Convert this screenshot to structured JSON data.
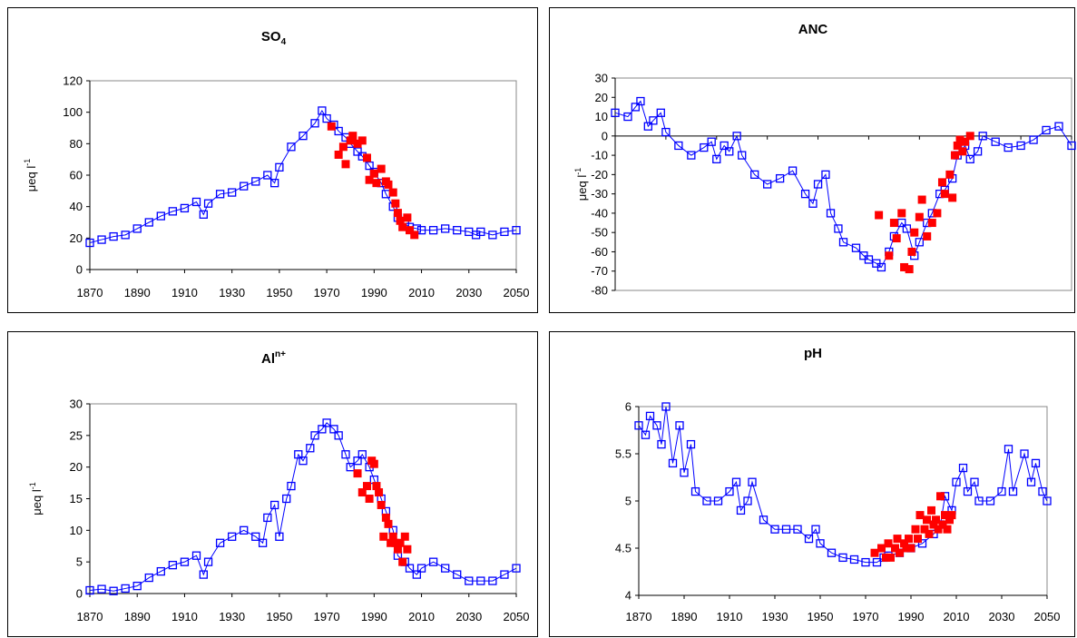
{
  "chart_data": [
    {
      "type": "scatter",
      "title": "SO",
      "title_sub": "4",
      "title_sup": "",
      "ylabel": "μeq l",
      "ylabel_sup": "-1",
      "xlim": [
        1870,
        2050
      ],
      "ylim": [
        0,
        120
      ],
      "xticks": [
        "1870",
        "1890",
        "1910",
        "1930",
        "1950",
        "1970",
        "1990",
        "2010",
        "2030",
        "2050"
      ],
      "yticks": [
        "0",
        "20",
        "40",
        "60",
        "80",
        "100",
        "120"
      ],
      "series": [
        {
          "marker": "open-square",
          "color": "#0000ff",
          "line": true,
          "x": [
            1870,
            1875,
            1880,
            1885,
            1890,
            1895,
            1900,
            1905,
            1910,
            1915,
            1918,
            1920,
            1925,
            1930,
            1935,
            1940,
            1945,
            1948,
            1950,
            1955,
            1960,
            1965,
            1968,
            1970,
            1973,
            1975,
            1978,
            1980,
            1983,
            1985,
            1988,
            1990,
            1993,
            1995,
            1998,
            2000,
            2003,
            2005,
            2008,
            2010,
            2015,
            2020,
            2025,
            2030,
            2033,
            2035,
            2040,
            2045,
            2050
          ],
          "y": [
            17,
            19,
            21,
            22,
            26,
            30,
            34,
            37,
            39,
            43,
            35,
            42,
            48,
            49,
            53,
            56,
            60,
            55,
            65,
            78,
            85,
            93,
            101,
            96,
            92,
            88,
            84,
            80,
            75,
            72,
            66,
            62,
            55,
            48,
            40,
            33,
            29,
            27,
            26,
            25,
            25,
            26,
            25,
            24,
            22,
            24,
            22,
            24,
            25
          ]
        },
        {
          "marker": "filled-square",
          "color": "#ff0000",
          "line": false,
          "x": [
            1972,
            1975,
            1977,
            1978,
            1980,
            1981,
            1983,
            1985,
            1987,
            1988,
            1990,
            1991,
            1993,
            1995,
            1996,
            1998,
            1999,
            2000,
            2001,
            2002,
            2004,
            2005,
            2007
          ],
          "y": [
            91,
            73,
            78,
            67,
            82,
            85,
            80,
            82,
            71,
            57,
            61,
            55,
            64,
            56,
            54,
            49,
            42,
            36,
            31,
            27,
            33,
            25,
            22
          ]
        }
      ]
    },
    {
      "type": "scatter",
      "title": "ANC",
      "title_sub": "",
      "title_sup": "",
      "ylabel": "μeq l",
      "ylabel_sup": "-1",
      "xlim": [
        1870,
        2050
      ],
      "ylim": [
        -80,
        30
      ],
      "xticks": [],
      "yticks": [
        "-80",
        "-70",
        "-60",
        "-50",
        "-40",
        "-30",
        "-20",
        "-10",
        "0",
        "10",
        "20",
        "30"
      ],
      "series": [
        {
          "marker": "open-square",
          "color": "#0000ff",
          "line": true,
          "x": [
            1870,
            1875,
            1878,
            1880,
            1883,
            1885,
            1888,
            1890,
            1895,
            1900,
            1905,
            1908,
            1910,
            1913,
            1915,
            1918,
            1920,
            1925,
            1930,
            1935,
            1940,
            1945,
            1948,
            1950,
            1953,
            1955,
            1958,
            1960,
            1965,
            1968,
            1970,
            1973,
            1975,
            1978,
            1980,
            1983,
            1985,
            1988,
            1990,
            1993,
            1995,
            1998,
            2000,
            2003,
            2005,
            2008,
            2010,
            2013,
            2015,
            2020,
            2025,
            2030,
            2035,
            2040,
            2045,
            2050
          ],
          "y": [
            12,
            10,
            15,
            18,
            5,
            8,
            12,
            2,
            -5,
            -10,
            -6,
            -3,
            -12,
            -5,
            -8,
            0,
            -10,
            -20,
            -25,
            -22,
            -18,
            -30,
            -35,
            -25,
            -20,
            -40,
            -48,
            -55,
            -58,
            -62,
            -64,
            -66,
            -68,
            -60,
            -52,
            -45,
            -48,
            -62,
            -55,
            -45,
            -40,
            -30,
            -28,
            -22,
            -10,
            -5,
            -12,
            -8,
            0,
            -3,
            -6,
            -5,
            -2,
            3,
            5,
            -5
          ]
        },
        {
          "marker": "filled-square",
          "color": "#ff0000",
          "line": false,
          "x": [
            1974,
            1978,
            1980,
            1981,
            1983,
            1984,
            1986,
            1987,
            1988,
            1990,
            1991,
            1993,
            1995,
            1997,
            1999,
            2000,
            2002,
            2003,
            2004,
            2005,
            2006,
            2007,
            2008,
            2010
          ],
          "y": [
            -41,
            -62,
            -45,
            -53,
            -40,
            -68,
            -69,
            -60,
            -50,
            -42,
            -33,
            -52,
            -45,
            -40,
            -24,
            -30,
            -20,
            -32,
            -10,
            -5,
            -2,
            -8,
            -3,
            0
          ]
        }
      ]
    },
    {
      "type": "scatter",
      "title": "Al",
      "title_sub": "",
      "title_sup": "n+",
      "ylabel": "μeq l",
      "ylabel_sup": "-1",
      "xlim": [
        1870,
        2050
      ],
      "ylim": [
        0,
        30
      ],
      "xticks": [
        "1870",
        "1890",
        "1910",
        "1930",
        "1950",
        "1970",
        "1990",
        "2010",
        "2030",
        "2050"
      ],
      "yticks": [
        "0",
        "5",
        "10",
        "15",
        "20",
        "25",
        "30"
      ],
      "series": [
        {
          "marker": "open-square",
          "color": "#0000ff",
          "line": true,
          "x": [
            1870,
            1875,
            1880,
            1885,
            1890,
            1895,
            1900,
            1905,
            1910,
            1915,
            1918,
            1920,
            1925,
            1930,
            1935,
            1940,
            1943,
            1945,
            1948,
            1950,
            1953,
            1955,
            1958,
            1960,
            1963,
            1965,
            1968,
            1970,
            1973,
            1975,
            1978,
            1980,
            1983,
            1985,
            1988,
            1990,
            1993,
            1995,
            1998,
            2000,
            2003,
            2005,
            2008,
            2010,
            2015,
            2020,
            2025,
            2030,
            2035,
            2040,
            2045,
            2050
          ],
          "y": [
            0.5,
            0.7,
            0.4,
            0.8,
            1.2,
            2.5,
            3.5,
            4.5,
            5,
            6,
            3,
            5,
            8,
            9,
            10,
            9,
            8,
            12,
            14,
            9,
            15,
            17,
            22,
            21,
            23,
            25,
            26,
            27,
            26,
            25,
            22,
            20,
            21,
            22,
            20,
            18,
            15,
            13,
            10,
            6,
            5,
            4,
            3,
            4,
            5,
            4,
            3,
            2,
            2,
            2,
            3,
            4
          ]
        },
        {
          "marker": "filled-square",
          "color": "#ff0000",
          "line": false,
          "x": [
            1983,
            1985,
            1987,
            1988,
            1989,
            1990,
            1991,
            1992,
            1993,
            1994,
            1995,
            1996,
            1997,
            1998,
            1999,
            2000,
            2001,
            2002,
            2003,
            2004
          ],
          "y": [
            19,
            16,
            17,
            15,
            21,
            20.5,
            17,
            16,
            14,
            9,
            12,
            11,
            8,
            9,
            8,
            7,
            8,
            5,
            9,
            7
          ]
        }
      ]
    },
    {
      "type": "scatter",
      "title": "pH",
      "title_sub": "",
      "title_sup": "",
      "ylabel": "",
      "ylabel_sup": "",
      "xlim": [
        1870,
        2050
      ],
      "ylim": [
        4,
        6
      ],
      "xticks": [
        "1870",
        "1890",
        "1910",
        "1930",
        "1950",
        "1970",
        "1990",
        "2010",
        "2030",
        "2050"
      ],
      "yticks": [
        "4",
        "4.5",
        "5",
        "5.5",
        "6"
      ],
      "series": [
        {
          "marker": "open-square",
          "color": "#0000ff",
          "line": true,
          "x": [
            1870,
            1873,
            1875,
            1878,
            1880,
            1882,
            1885,
            1888,
            1890,
            1893,
            1895,
            1900,
            1905,
            1910,
            1913,
            1915,
            1918,
            1920,
            1925,
            1930,
            1935,
            1940,
            1945,
            1948,
            1950,
            1955,
            1960,
            1965,
            1970,
            1975,
            1978,
            1980,
            1985,
            1990,
            1995,
            2000,
            2003,
            2005,
            2008,
            2010,
            2013,
            2015,
            2018,
            2020,
            2025,
            2030,
            2033,
            2035,
            2040,
            2043,
            2045,
            2048,
            2050
          ],
          "y": [
            5.8,
            5.7,
            5.9,
            5.8,
            5.6,
            6.0,
            5.4,
            5.8,
            5.3,
            5.6,
            5.1,
            5.0,
            5.0,
            5.1,
            5.2,
            4.9,
            5.0,
            5.2,
            4.8,
            4.7,
            4.7,
            4.7,
            4.6,
            4.7,
            4.55,
            4.45,
            4.4,
            4.38,
            4.35,
            4.35,
            4.4,
            4.42,
            4.45,
            4.5,
            4.55,
            4.65,
            4.75,
            5.05,
            4.9,
            5.2,
            5.35,
            5.1,
            5.2,
            5.0,
            5.0,
            5.1,
            5.55,
            5.1,
            5.5,
            5.2,
            5.4,
            5.1,
            5.0
          ]
        },
        {
          "marker": "filled-square",
          "color": "#ff0000",
          "line": false,
          "x": [
            1974,
            1977,
            1979,
            1980,
            1981,
            1983,
            1984,
            1985,
            1987,
            1988,
            1989,
            1990,
            1992,
            1993,
            1994,
            1996,
            1997,
            1998,
            1999,
            2000,
            2001,
            2002,
            2003,
            2004,
            2005,
            2006,
            2007,
            2008
          ],
          "y": [
            4.45,
            4.5,
            4.4,
            4.55,
            4.4,
            4.5,
            4.6,
            4.45,
            4.55,
            4.5,
            4.6,
            4.5,
            4.7,
            4.6,
            4.85,
            4.7,
            4.8,
            4.65,
            4.9,
            4.75,
            4.8,
            4.7,
            5.05,
            4.75,
            4.85,
            4.7,
            4.8,
            4.85
          ]
        }
      ]
    }
  ]
}
